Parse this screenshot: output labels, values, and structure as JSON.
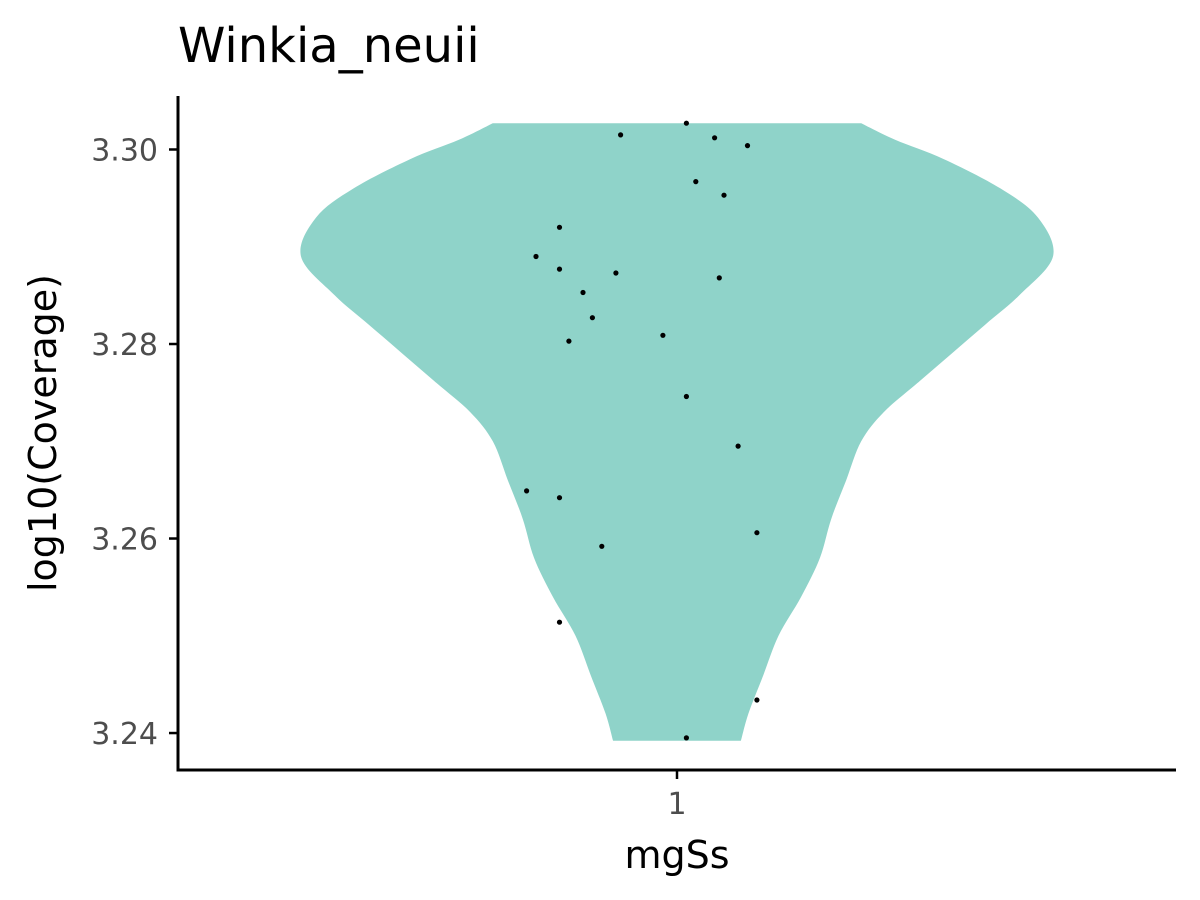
{
  "chart_data": {
    "type": "violin",
    "title": "Winkia_neuii",
    "xlabel": "mgSs",
    "ylabel": "log10(Coverage)",
    "categories": [
      "1"
    ],
    "ylim": [
      3.2362,
      3.3055
    ],
    "yticks": [
      3.24,
      3.26,
      3.28,
      3.3
    ],
    "ytick_labels": [
      "3.24",
      "3.26",
      "3.28",
      "3.30"
    ],
    "fill_color": "#8fd3c9",
    "point_color": "#000000",
    "grid": false,
    "legend": "none",
    "violin": {
      "y_min": 3.2392,
      "y_max": 3.3027,
      "profile": [
        [
          3.2392,
          0.17
        ],
        [
          3.242,
          0.19
        ],
        [
          3.246,
          0.23
        ],
        [
          3.25,
          0.27
        ],
        [
          3.254,
          0.33
        ],
        [
          3.258,
          0.38
        ],
        [
          3.262,
          0.41
        ],
        [
          3.266,
          0.45
        ],
        [
          3.27,
          0.49
        ],
        [
          3.273,
          0.55
        ],
        [
          3.276,
          0.64
        ],
        [
          3.279,
          0.73
        ],
        [
          3.282,
          0.82
        ],
        [
          3.285,
          0.91
        ],
        [
          3.289,
          1.0
        ],
        [
          3.293,
          0.96
        ],
        [
          3.296,
          0.86
        ],
        [
          3.299,
          0.71
        ],
        [
          3.301,
          0.58
        ],
        [
          3.3027,
          0.49
        ]
      ]
    },
    "points": [
      {
        "x": 1.02,
        "y": 3.3027
      },
      {
        "x": 0.88,
        "y": 3.3015
      },
      {
        "x": 1.08,
        "y": 3.3012
      },
      {
        "x": 1.15,
        "y": 3.3004
      },
      {
        "x": 1.04,
        "y": 3.2967
      },
      {
        "x": 1.1,
        "y": 3.2953
      },
      {
        "x": 0.75,
        "y": 3.292
      },
      {
        "x": 0.7,
        "y": 3.289
      },
      {
        "x": 0.75,
        "y": 3.2877
      },
      {
        "x": 0.87,
        "y": 3.2873
      },
      {
        "x": 1.09,
        "y": 3.2868
      },
      {
        "x": 0.8,
        "y": 3.2853
      },
      {
        "x": 0.82,
        "y": 3.2827
      },
      {
        "x": 0.97,
        "y": 3.2809
      },
      {
        "x": 0.77,
        "y": 3.2803
      },
      {
        "x": 1.02,
        "y": 3.2746
      },
      {
        "x": 1.13,
        "y": 3.2695
      },
      {
        "x": 0.68,
        "y": 3.2649
      },
      {
        "x": 0.75,
        "y": 3.2642
      },
      {
        "x": 1.17,
        "y": 3.2606
      },
      {
        "x": 0.84,
        "y": 3.2592
      },
      {
        "x": 0.75,
        "y": 3.2514
      },
      {
        "x": 1.17,
        "y": 3.2434
      },
      {
        "x": 1.02,
        "y": 3.2395
      }
    ]
  }
}
